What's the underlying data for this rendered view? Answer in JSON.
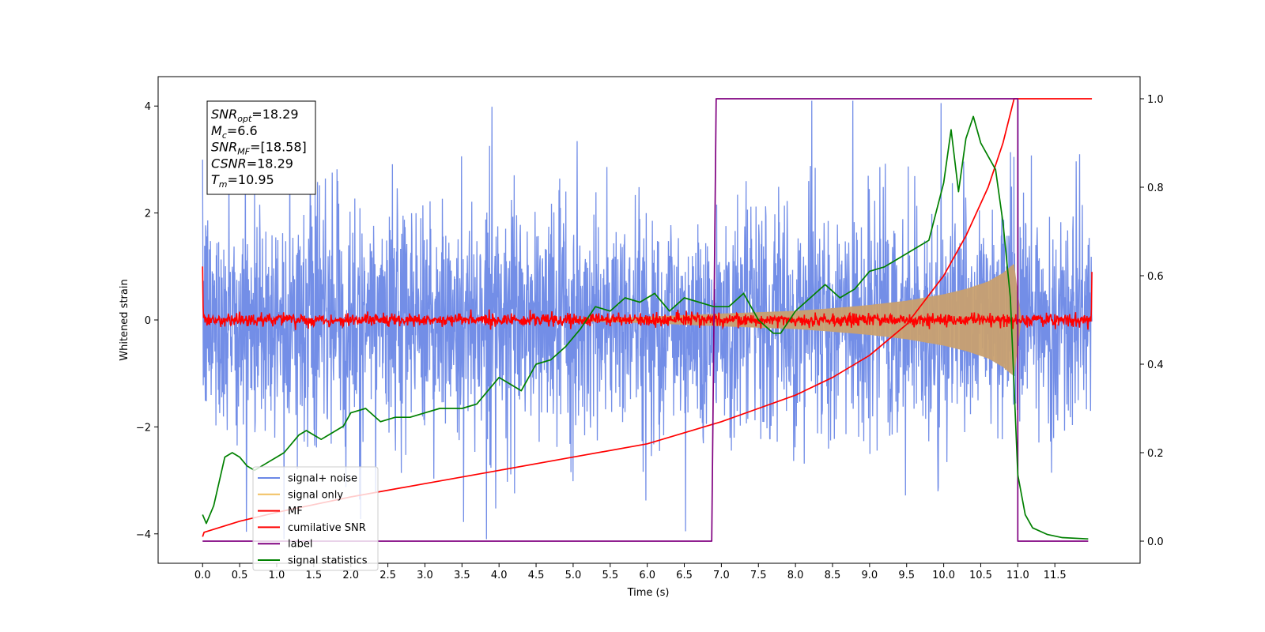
{
  "chart_data": {
    "type": "line",
    "xlabel": "Time (s)",
    "ylabel": "Whitened strain",
    "xlim": [
      -0.6,
      12.65
    ],
    "ylim_left": [
      -4.55,
      4.55
    ],
    "ylim_right": [
      -0.05,
      1.05
    ],
    "xticks": [
      0.0,
      0.5,
      1.0,
      1.5,
      2.0,
      2.5,
      3.0,
      3.5,
      4.0,
      4.5,
      5.0,
      5.5,
      6.0,
      6.5,
      7.0,
      7.5,
      8.0,
      8.5,
      9.0,
      9.5,
      10.0,
      10.5,
      11.0,
      11.5
    ],
    "xtick_labels": [
      "0.0",
      "0.5",
      "1.0",
      "1.5",
      "2.0",
      "2.5",
      "3.0",
      "3.5",
      "4.0",
      "4.5",
      "5.0",
      "5.5",
      "6.0",
      "6.5",
      "7.0",
      "7.5",
      "8.0",
      "8.5",
      "9.0",
      "9.5",
      "10.0",
      "10.5",
      "11.0",
      "11.5"
    ],
    "yticks_left": [
      -4,
      -2,
      0,
      2,
      4
    ],
    "ytick_labels_left": [
      "−4",
      "−2",
      "0",
      "2",
      "4"
    ],
    "yticks_right": [
      0.0,
      0.2,
      0.4,
      0.6,
      0.8,
      1.0
    ],
    "ytick_labels_right": [
      "0.0",
      "0.2",
      "0.4",
      "0.6",
      "0.8",
      "1.0"
    ],
    "annotation": {
      "lines": [
        {
          "base": "SNR",
          "sub": "opt",
          "rest": "=18.29"
        },
        {
          "base": "M",
          "sub": "c",
          "rest": "=6.6"
        },
        {
          "base": "SNR",
          "sub": "MF",
          "rest": "=[18.58]"
        },
        {
          "base": "CSNR",
          "sub": "",
          "rest": "=18.29"
        },
        {
          "base": "T",
          "sub": "m",
          "rest": "=10.95"
        }
      ]
    },
    "legend": {
      "placement": "lower-left",
      "entries": [
        {
          "label": "signal+ noise",
          "color": "#6b88e6"
        },
        {
          "label": "signal only",
          "color": "#f2c060"
        },
        {
          "label": "MF",
          "color": "#ff0000"
        },
        {
          "label": "cumilative SNR",
          "color": "#ff0000"
        },
        {
          "label": "label",
          "color": "#800080"
        },
        {
          "label": "signal statistics",
          "color": "#008000"
        }
      ]
    },
    "series": [
      {
        "name": "signal+ noise",
        "axis": "left",
        "color": "#6b88e6",
        "kind": "noise",
        "t_range": [
          0.0,
          12.0
        ],
        "amplitude_typical": 1.5,
        "amplitude_peak": 4.1
      },
      {
        "name": "signal only",
        "axis": "left",
        "color": "#c8a070",
        "kind": "chirp_envelope",
        "t_range": [
          5.0,
          10.95
        ],
        "envelope_t": [
          5.0,
          6.0,
          7.0,
          8.0,
          8.5,
          9.0,
          9.5,
          10.0,
          10.3,
          10.6,
          10.8,
          10.9,
          10.95
        ],
        "envelope_amp": [
          0.02,
          0.06,
          0.12,
          0.17,
          0.22,
          0.28,
          0.36,
          0.48,
          0.58,
          0.72,
          0.88,
          1.0,
          1.05
        ]
      },
      {
        "name": "MF",
        "axis": "left",
        "color": "#ff0000",
        "kind": "noise_small",
        "t_range": [
          0.0,
          12.0
        ],
        "amplitude_typical": 0.06,
        "edge_values": [
          1.0,
          0.9
        ]
      },
      {
        "name": "cumilative SNR",
        "axis": "right",
        "color": "#ff0000",
        "x": [
          0.0,
          0.02,
          0.5,
          1.0,
          2.0,
          3.0,
          4.0,
          5.0,
          6.0,
          7.0,
          7.5,
          8.0,
          8.5,
          9.0,
          9.5,
          10.0,
          10.3,
          10.6,
          10.8,
          10.95,
          11.0,
          12.0
        ],
        "y": [
          0.01,
          0.02,
          0.045,
          0.065,
          0.1,
          0.13,
          0.16,
          0.19,
          0.22,
          0.27,
          0.3,
          0.33,
          0.37,
          0.42,
          0.49,
          0.6,
          0.69,
          0.8,
          0.9,
          1.0,
          1.0,
          1.0
        ]
      },
      {
        "name": "label",
        "axis": "right",
        "color": "#800080",
        "x": [
          0.0,
          6.87,
          6.93,
          10.93,
          11.0,
          11.0,
          11.95
        ],
        "y": [
          0.0,
          0.0,
          1.0,
          1.0,
          1.0,
          0.0,
          0.0
        ]
      },
      {
        "name": "signal statistics",
        "axis": "right",
        "color": "#008000",
        "x": [
          0.0,
          0.05,
          0.15,
          0.3,
          0.4,
          0.5,
          0.6,
          0.7,
          0.8,
          0.9,
          1.0,
          1.1,
          1.2,
          1.3,
          1.4,
          1.5,
          1.6,
          1.7,
          1.8,
          1.9,
          2.0,
          2.2,
          2.4,
          2.6,
          2.8,
          3.0,
          3.2,
          3.5,
          3.7,
          4.0,
          4.1,
          4.3,
          4.5,
          4.7,
          4.9,
          5.1,
          5.3,
          5.5,
          5.7,
          5.9,
          6.1,
          6.3,
          6.5,
          6.7,
          6.9,
          7.1,
          7.3,
          7.5,
          7.7,
          7.8,
          8.0,
          8.2,
          8.4,
          8.6,
          8.8,
          9.0,
          9.2,
          9.4,
          9.6,
          9.8,
          10.0,
          10.1,
          10.2,
          10.3,
          10.4,
          10.5,
          10.6,
          10.7,
          10.8,
          10.9,
          11.0,
          11.1,
          11.2,
          11.4,
          11.6,
          11.95
        ],
        "y": [
          0.06,
          0.04,
          0.08,
          0.19,
          0.2,
          0.19,
          0.17,
          0.16,
          0.17,
          0.18,
          0.19,
          0.2,
          0.22,
          0.24,
          0.25,
          0.24,
          0.23,
          0.24,
          0.25,
          0.26,
          0.29,
          0.3,
          0.27,
          0.28,
          0.28,
          0.29,
          0.3,
          0.3,
          0.31,
          0.37,
          0.36,
          0.34,
          0.4,
          0.41,
          0.44,
          0.48,
          0.53,
          0.52,
          0.55,
          0.54,
          0.56,
          0.52,
          0.55,
          0.54,
          0.53,
          0.53,
          0.56,
          0.5,
          0.47,
          0.47,
          0.52,
          0.55,
          0.58,
          0.55,
          0.57,
          0.61,
          0.62,
          0.64,
          0.66,
          0.68,
          0.81,
          0.93,
          0.79,
          0.91,
          0.96,
          0.9,
          0.87,
          0.84,
          0.72,
          0.55,
          0.15,
          0.06,
          0.03,
          0.015,
          0.008,
          0.005
        ]
      }
    ]
  }
}
